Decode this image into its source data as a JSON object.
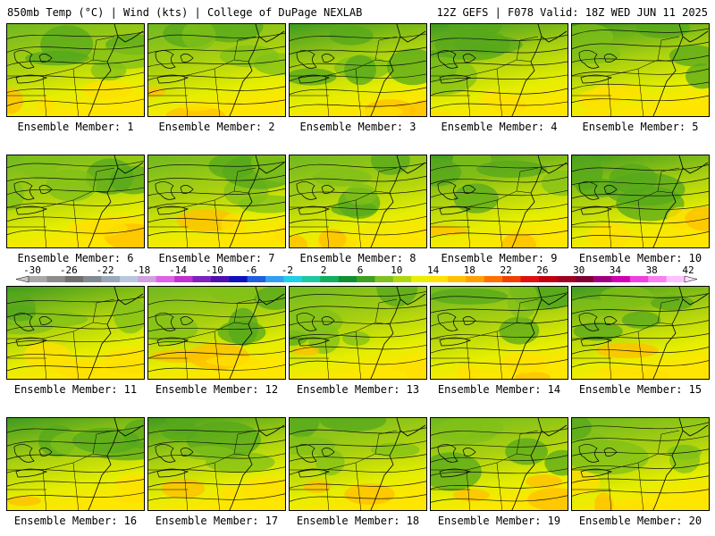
{
  "header": {
    "left": "850mb Temp (°C) | Wind (kts) | College of DuPage NEXLAB",
    "right": "12Z GEFS | F078 Valid: 18Z WED JUN 11 2025"
  },
  "label_prefix": "Ensemble Member: ",
  "members": [
    {
      "id": "1",
      "label": "Ensemble Member: 1"
    },
    {
      "id": "2",
      "label": "Ensemble Member: 2"
    },
    {
      "id": "3",
      "label": "Ensemble Member: 3"
    },
    {
      "id": "4",
      "label": "Ensemble Member: 4"
    },
    {
      "id": "5",
      "label": "Ensemble Member: 5"
    },
    {
      "id": "6",
      "label": "Ensemble Member: 6"
    },
    {
      "id": "7",
      "label": "Ensemble Member: 7"
    },
    {
      "id": "8",
      "label": "Ensemble Member: 8"
    },
    {
      "id": "9",
      "label": "Ensemble Member: 9"
    },
    {
      "id": "10",
      "label": "Ensemble Member: 10"
    },
    {
      "id": "11",
      "label": "Ensemble Member: 11"
    },
    {
      "id": "12",
      "label": "Ensemble Member: 12"
    },
    {
      "id": "13",
      "label": "Ensemble Member: 13"
    },
    {
      "id": "14",
      "label": "Ensemble Member: 14"
    },
    {
      "id": "15",
      "label": "Ensemble Member: 15"
    },
    {
      "id": "16",
      "label": "Ensemble Member: 16"
    },
    {
      "id": "17",
      "label": "Ensemble Member: 17"
    },
    {
      "id": "18",
      "label": "Ensemble Member: 18"
    },
    {
      "id": "19",
      "label": "Ensemble Member: 19"
    },
    {
      "id": "20",
      "label": "Ensemble Member: 20"
    }
  ],
  "colorbar": {
    "ticks": [
      "-30",
      "-26",
      "-22",
      "-18",
      "-14",
      "-10",
      "-6",
      "-2",
      "2",
      "6",
      "10",
      "14",
      "18",
      "22",
      "26",
      "30",
      "34",
      "38",
      "42"
    ],
    "colors": [
      "#a8a8a8",
      "#8c8c8c",
      "#707070",
      "#808a90",
      "#9aa8b8",
      "#b8c8dc",
      "#d0a0e0",
      "#e060e8",
      "#c030d0",
      "#8020c0",
      "#5010b0",
      "#1010c0",
      "#2060e0",
      "#30a0f0",
      "#20d0e8",
      "#20c8a0",
      "#10b060",
      "#109030",
      "#40a020",
      "#80c020",
      "#b0d810",
      "#e8f000",
      "#ffe000",
      "#ffc000",
      "#ffa000",
      "#ff7000",
      "#f04000",
      "#e01010",
      "#c00010",
      "#a00020",
      "#800030",
      "#a00080",
      "#d000b0",
      "#f040e0",
      "#f880f0",
      "#ffc0ff"
    ]
  }
}
